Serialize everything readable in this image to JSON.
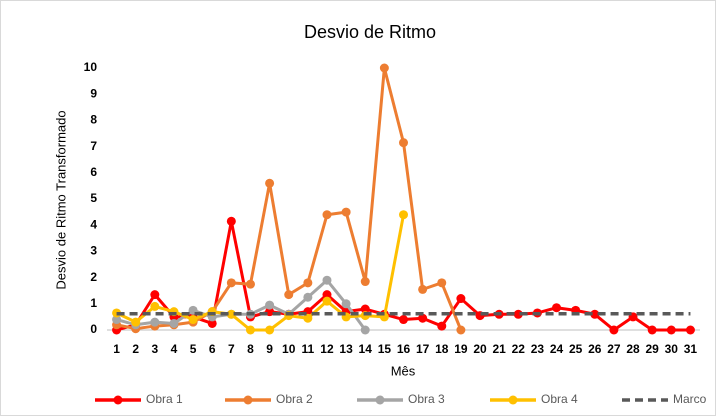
{
  "chart_data": {
    "type": "line",
    "title": "Desvio de Ritmo",
    "x_label": "Mês",
    "y_label": "Desvio de Ritmo Transformado",
    "categories": [
      1,
      2,
      3,
      4,
      5,
      6,
      7,
      8,
      9,
      10,
      11,
      12,
      13,
      14,
      15,
      16,
      17,
      18,
      19,
      20,
      21,
      22,
      23,
      24,
      25,
      26,
      27,
      28,
      29,
      30,
      31
    ],
    "ylim": [
      0,
      10
    ],
    "yticks": [
      0,
      1,
      2,
      3,
      4,
      5,
      6,
      7,
      8,
      9,
      10
    ],
    "grid": false,
    "legend": "bottom",
    "series": [
      {
        "name": "Obra 1",
        "color": "#ff0000",
        "values": [
          0,
          0.2,
          1.35,
          0.5,
          0.5,
          0.25,
          4.15,
          0.5,
          0.7,
          0.6,
          0.7,
          1.35,
          0.7,
          0.8,
          0.6,
          0.4,
          0.45,
          0.15,
          1.2,
          0.55,
          0.6,
          0.6,
          0.65,
          0.85,
          0.75,
          0.6,
          0,
          0.5,
          0,
          0,
          0
        ]
      },
      {
        "name": "Obra 2",
        "color": "#ed7d31",
        "values": [
          0.2,
          0.05,
          0.15,
          0.2,
          0.3,
          0.7,
          1.8,
          1.75,
          5.6,
          1.35,
          1.8,
          4.4,
          4.5,
          1.85,
          10,
          7.15,
          1.55,
          1.8,
          0,
          null,
          null,
          null,
          null,
          null,
          null,
          null,
          null,
          null,
          null,
          null,
          null
        ]
      },
      {
        "name": "Obra 3",
        "color": "#a5a5a5",
        "values": [
          0.4,
          0.2,
          0.3,
          0.25,
          0.75,
          0.5,
          0.6,
          0.6,
          0.95,
          0.6,
          1.25,
          1.9,
          1.0,
          0,
          null,
          null,
          null,
          null,
          null,
          null,
          null,
          null,
          null,
          null,
          null,
          null,
          null,
          null,
          null,
          null,
          null
        ]
      },
      {
        "name": "Obra 4",
        "color": "#ffc000",
        "values": [
          0.65,
          0.3,
          0.9,
          0.7,
          0.4,
          0.7,
          0.6,
          0,
          0,
          0.55,
          0.45,
          1.1,
          0.5,
          0.55,
          0.5,
          4.4,
          null,
          null,
          null,
          null,
          null,
          null,
          null,
          null,
          null,
          null,
          null,
          null,
          null,
          null,
          null
        ]
      },
      {
        "name": "Marco",
        "color": "#595959",
        "line_style": "dashed",
        "markers": false,
        "values": [
          0.62,
          0.62,
          0.62,
          0.62,
          0.62,
          0.62,
          0.62,
          0.62,
          0.62,
          0.62,
          0.62,
          0.62,
          0.62,
          0.62,
          0.62,
          0.62,
          0.62,
          0.62,
          0.62,
          0.62,
          0.62,
          0.62,
          0.62,
          0.62,
          0.62,
          0.62,
          0.62,
          0.62,
          0.62,
          0.62,
          0.62
        ]
      }
    ]
  }
}
